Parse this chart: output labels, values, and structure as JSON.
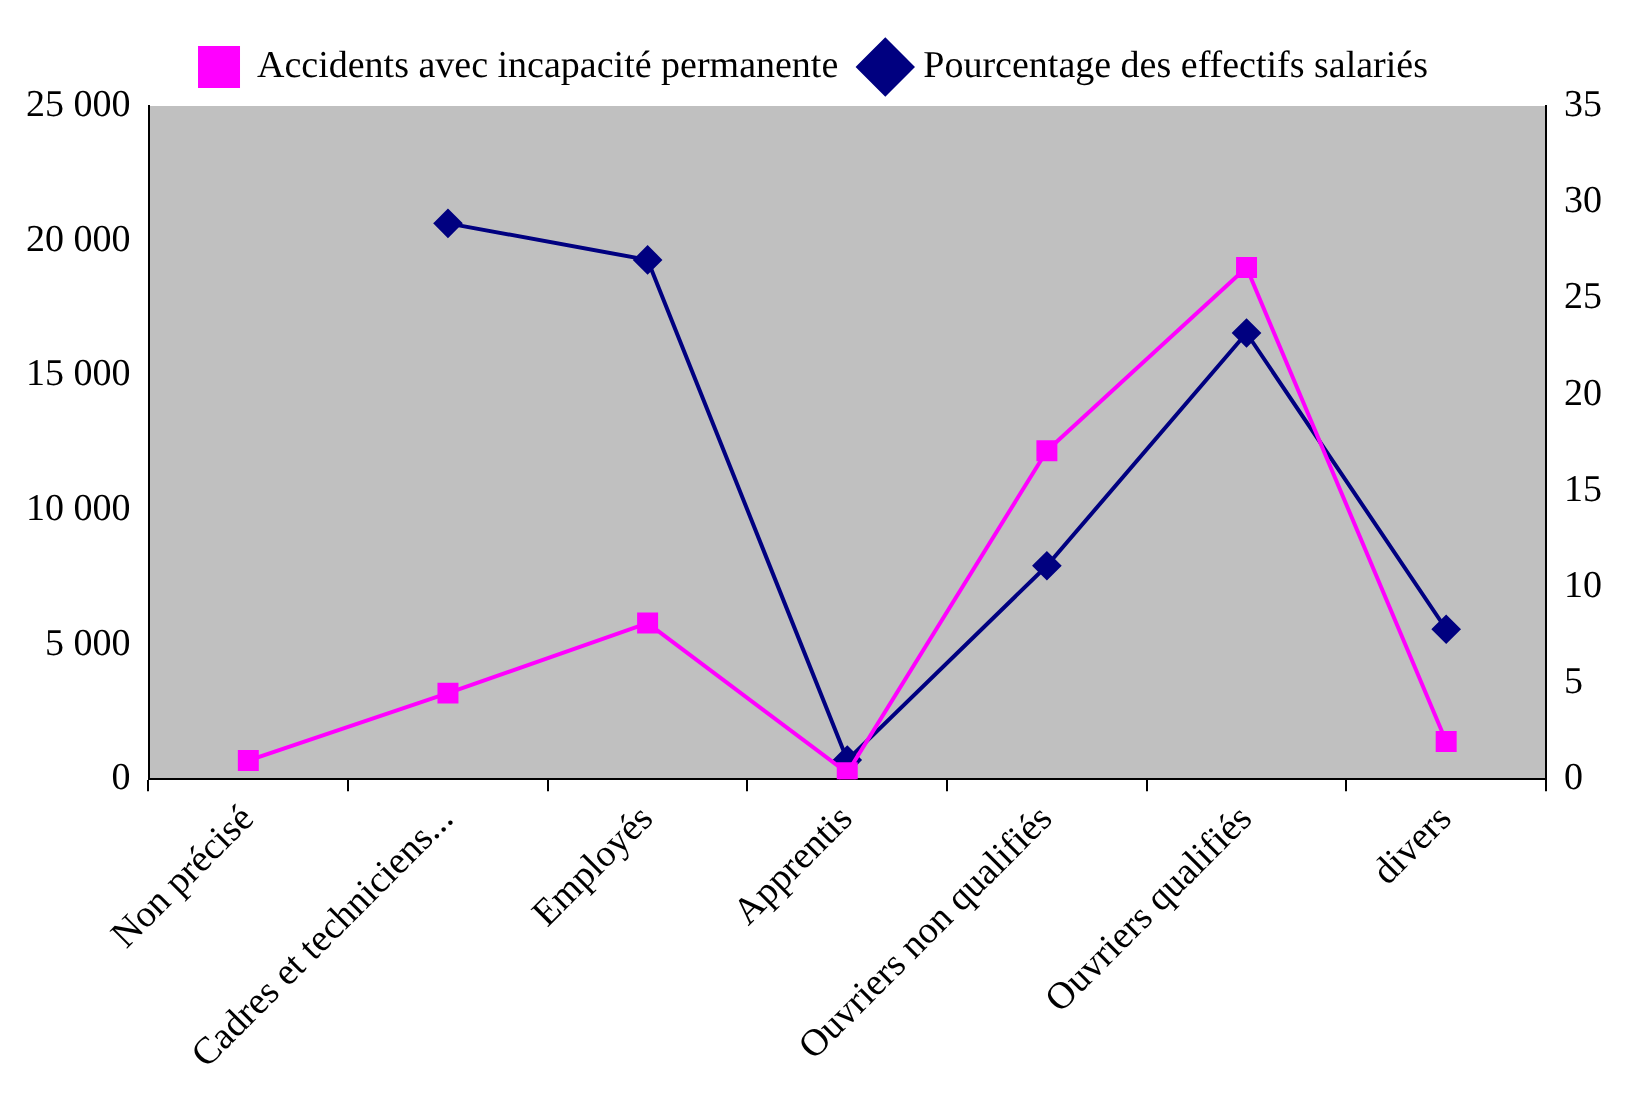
{
  "chart_data": {
    "type": "line",
    "categories": [
      "Non précisé",
      "Cadres et techniciens...",
      "Employés",
      "Apprentis",
      "Ouvriers non qualifiés",
      "Ouvriers qualifiés",
      "divers"
    ],
    "series": [
      {
        "name": "Accidents avec incapacité permanente",
        "color": "#ff00ff",
        "marker": "square",
        "values": [
          700,
          3200,
          5800,
          240,
          12200,
          19000,
          1400
        ]
      },
      {
        "name": "Pourcentage des effectifs salariés",
        "color": "#000080",
        "marker": "diamond",
        "axis": "y2",
        "values": [
          null,
          28.9,
          27,
          1,
          11.1,
          23.2,
          7.8
        ]
      }
    ],
    "ylim": [
      0,
      25000
    ],
    "yticks": [
      {
        "value": 0,
        "label": "0"
      },
      {
        "value": 5000,
        "label": "5 000"
      },
      {
        "value": 10000,
        "label": "10 000"
      },
      {
        "value": 15000,
        "label": "15 000"
      },
      {
        "value": 20000,
        "label": "20 000"
      },
      {
        "value": 25000,
        "label": "25 000"
      }
    ],
    "y2lim": [
      0,
      35
    ],
    "y2ticks": [
      0,
      5,
      10,
      15,
      20,
      25,
      30,
      35
    ],
    "grid": false,
    "legend": "top",
    "line_style": "solid"
  }
}
